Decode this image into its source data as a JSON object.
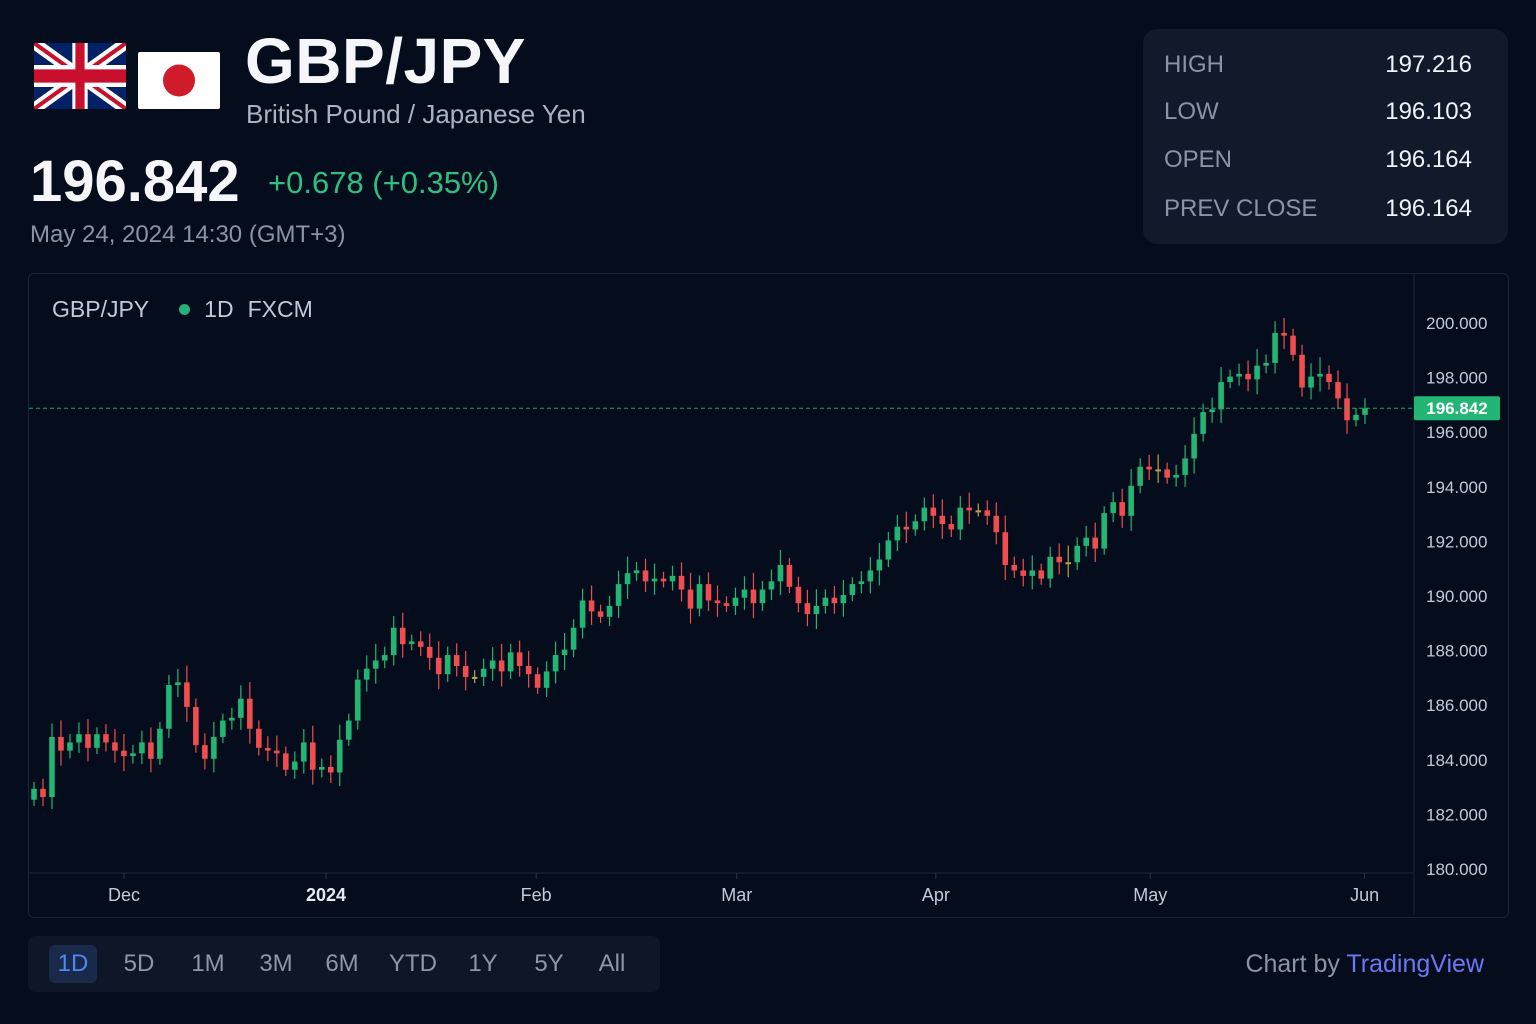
{
  "header": {
    "symbol": "GBP/JPY",
    "name": "British Pound / Japanese Yen",
    "price": "196.842",
    "change": "+0.678 (+0.35%)",
    "timestamp": "May 24, 2024 14:30 (GMT+3)",
    "flags": [
      "uk-flag-icon",
      "japan-flag-icon"
    ]
  },
  "stats": [
    {
      "label": "HIGH",
      "value": "197.216"
    },
    {
      "label": "LOW",
      "value": "196.103"
    },
    {
      "label": "OPEN",
      "value": "196.164"
    },
    {
      "label": "PREV CLOSE",
      "value": "196.164"
    }
  ],
  "chart_legend": {
    "symbol": "GBP/JPY",
    "interval": "1D",
    "source": "FXCM"
  },
  "chart_data": {
    "type": "candlestick",
    "symbol": "GBP/JPY",
    "ylim": [
      180,
      200
    ],
    "y_ticks": [
      "200.000",
      "198.000",
      "196.000",
      "194.000",
      "192.000",
      "190.000",
      "188.000",
      "186.000",
      "184.000",
      "182.000",
      "180.000"
    ],
    "x_ticks": [
      {
        "label": "Dec",
        "pos": 0.068,
        "bold": false
      },
      {
        "label": "2024",
        "pos": 0.214,
        "bold": true
      },
      {
        "label": "Feb",
        "pos": 0.366,
        "bold": false
      },
      {
        "label": "Mar",
        "pos": 0.511,
        "bold": false
      },
      {
        "label": "Apr",
        "pos": 0.655,
        "bold": false
      },
      {
        "label": "May",
        "pos": 0.81,
        "bold": false
      },
      {
        "label": "Jun",
        "pos": 0.965,
        "bold": false
      }
    ],
    "last_price": 196.842,
    "last_price_label": "196.842",
    "colors": {
      "up": "#22b573",
      "down": "#ef4d4f",
      "neutral": "#b8a24a",
      "last_price": "#22b573"
    },
    "closes": [
      182.9,
      182.6,
      184.8,
      184.3,
      184.6,
      184.9,
      184.4,
      184.9,
      184.6,
      184.3,
      184.1,
      184.2,
      184.6,
      184.0,
      185.1,
      186.7,
      186.8,
      185.9,
      184.5,
      184.0,
      184.8,
      185.4,
      185.5,
      186.2,
      185.1,
      184.4,
      184.3,
      184.2,
      183.6,
      183.9,
      184.6,
      183.6,
      183.7,
      183.5,
      184.7,
      185.4,
      186.9,
      187.3,
      187.6,
      187.8,
      188.8,
      188.2,
      188.3,
      188.1,
      187.7,
      187.1,
      187.8,
      187.4,
      187.0,
      187.0,
      187.3,
      187.6,
      187.2,
      187.9,
      187.4,
      187.1,
      186.6,
      187.2,
      187.8,
      188.0,
      188.8,
      189.8,
      189.4,
      189.2,
      189.6,
      190.4,
      190.8,
      190.9,
      190.5,
      190.6,
      190.5,
      190.7,
      190.2,
      189.5,
      190.4,
      189.8,
      189.7,
      189.6,
      189.9,
      190.2,
      189.7,
      190.2,
      190.5,
      191.1,
      190.3,
      189.7,
      189.3,
      189.6,
      189.9,
      189.7,
      190.0,
      190.4,
      190.5,
      190.9,
      191.3,
      192.0,
      192.5,
      192.4,
      192.7,
      193.2,
      192.9,
      192.6,
      192.4,
      193.2,
      193.1,
      193.1,
      192.9,
      192.3,
      191.1,
      190.9,
      190.7,
      190.9,
      190.6,
      191.4,
      191.2,
      191.2,
      191.8,
      192.1,
      191.7,
      193.0,
      193.4,
      192.9,
      194.0,
      194.7,
      194.6,
      194.6,
      194.3,
      194.4,
      195.0,
      195.9,
      196.7,
      196.8,
      197.8,
      198.0,
      198.1,
      197.9,
      198.4,
      198.5,
      199.6,
      199.5,
      198.8,
      197.6,
      198.0,
      198.1,
      197.8,
      197.2,
      196.4,
      196.6,
      196.84
    ]
  },
  "range_buttons": [
    "1D",
    "5D",
    "1M",
    "3M",
    "6M",
    "YTD",
    "1Y",
    "5Y",
    "All"
  ],
  "active_range": "1D",
  "credit": {
    "prefix": "Chart by",
    "brand": "TradingView"
  }
}
